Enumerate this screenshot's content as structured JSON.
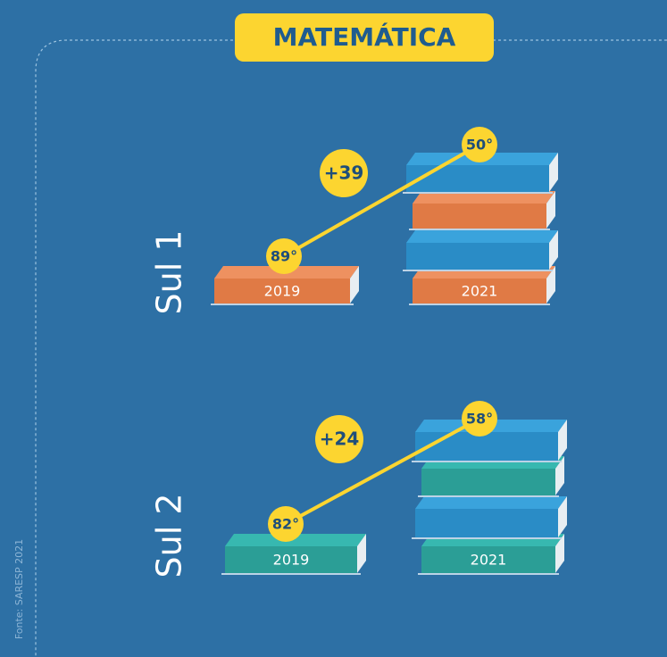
{
  "title": "MATEMÁTICA",
  "source": "Fonte: SARESP 2021",
  "panels": [
    {
      "label": "Sul 1",
      "change": "+39",
      "years": [
        {
          "year": "2019",
          "rank": "89°"
        },
        {
          "year": "2021",
          "rank": "50°"
        }
      ]
    },
    {
      "label": "Sul 2",
      "change": "+24",
      "years": [
        {
          "year": "2019",
          "rank": "82°"
        },
        {
          "year": "2021",
          "rank": "58°"
        }
      ]
    }
  ]
}
